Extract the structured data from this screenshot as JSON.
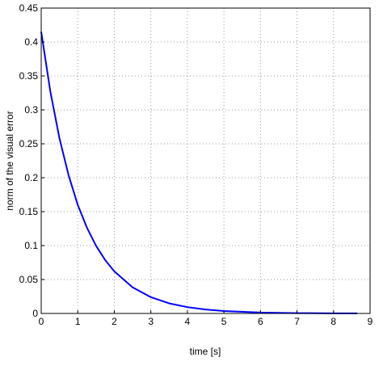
{
  "chart_data": {
    "type": "line",
    "x_label": "time [s]",
    "y_label": "norm of the visual error",
    "x": [
      0,
      0.25,
      0.5,
      0.75,
      1,
      1.25,
      1.5,
      1.75,
      2,
      2.5,
      3,
      3.5,
      4,
      4.5,
      5,
      6,
      7,
      8,
      8.65
    ],
    "series": [
      {
        "color": "#0000ff",
        "values": [
          0.415,
          0.327,
          0.258,
          0.2035,
          0.16,
          0.1266,
          0.0998,
          0.0787,
          0.0621,
          0.0386,
          0.024,
          0.0149,
          0.0093,
          0.0058,
          0.0036,
          0.0014,
          0.0005,
          0.0002,
          0.0001
        ]
      }
    ],
    "xlim": [
      0,
      9
    ],
    "xticks": [
      0,
      1,
      2,
      3,
      4,
      5,
      6,
      7,
      8,
      9
    ],
    "ylim": [
      0,
      0.45
    ],
    "yticks": [
      0,
      0.05,
      0.1,
      0.15,
      0.2,
      0.25,
      0.3,
      0.35,
      0.4,
      0.45
    ],
    "grid": true
  }
}
